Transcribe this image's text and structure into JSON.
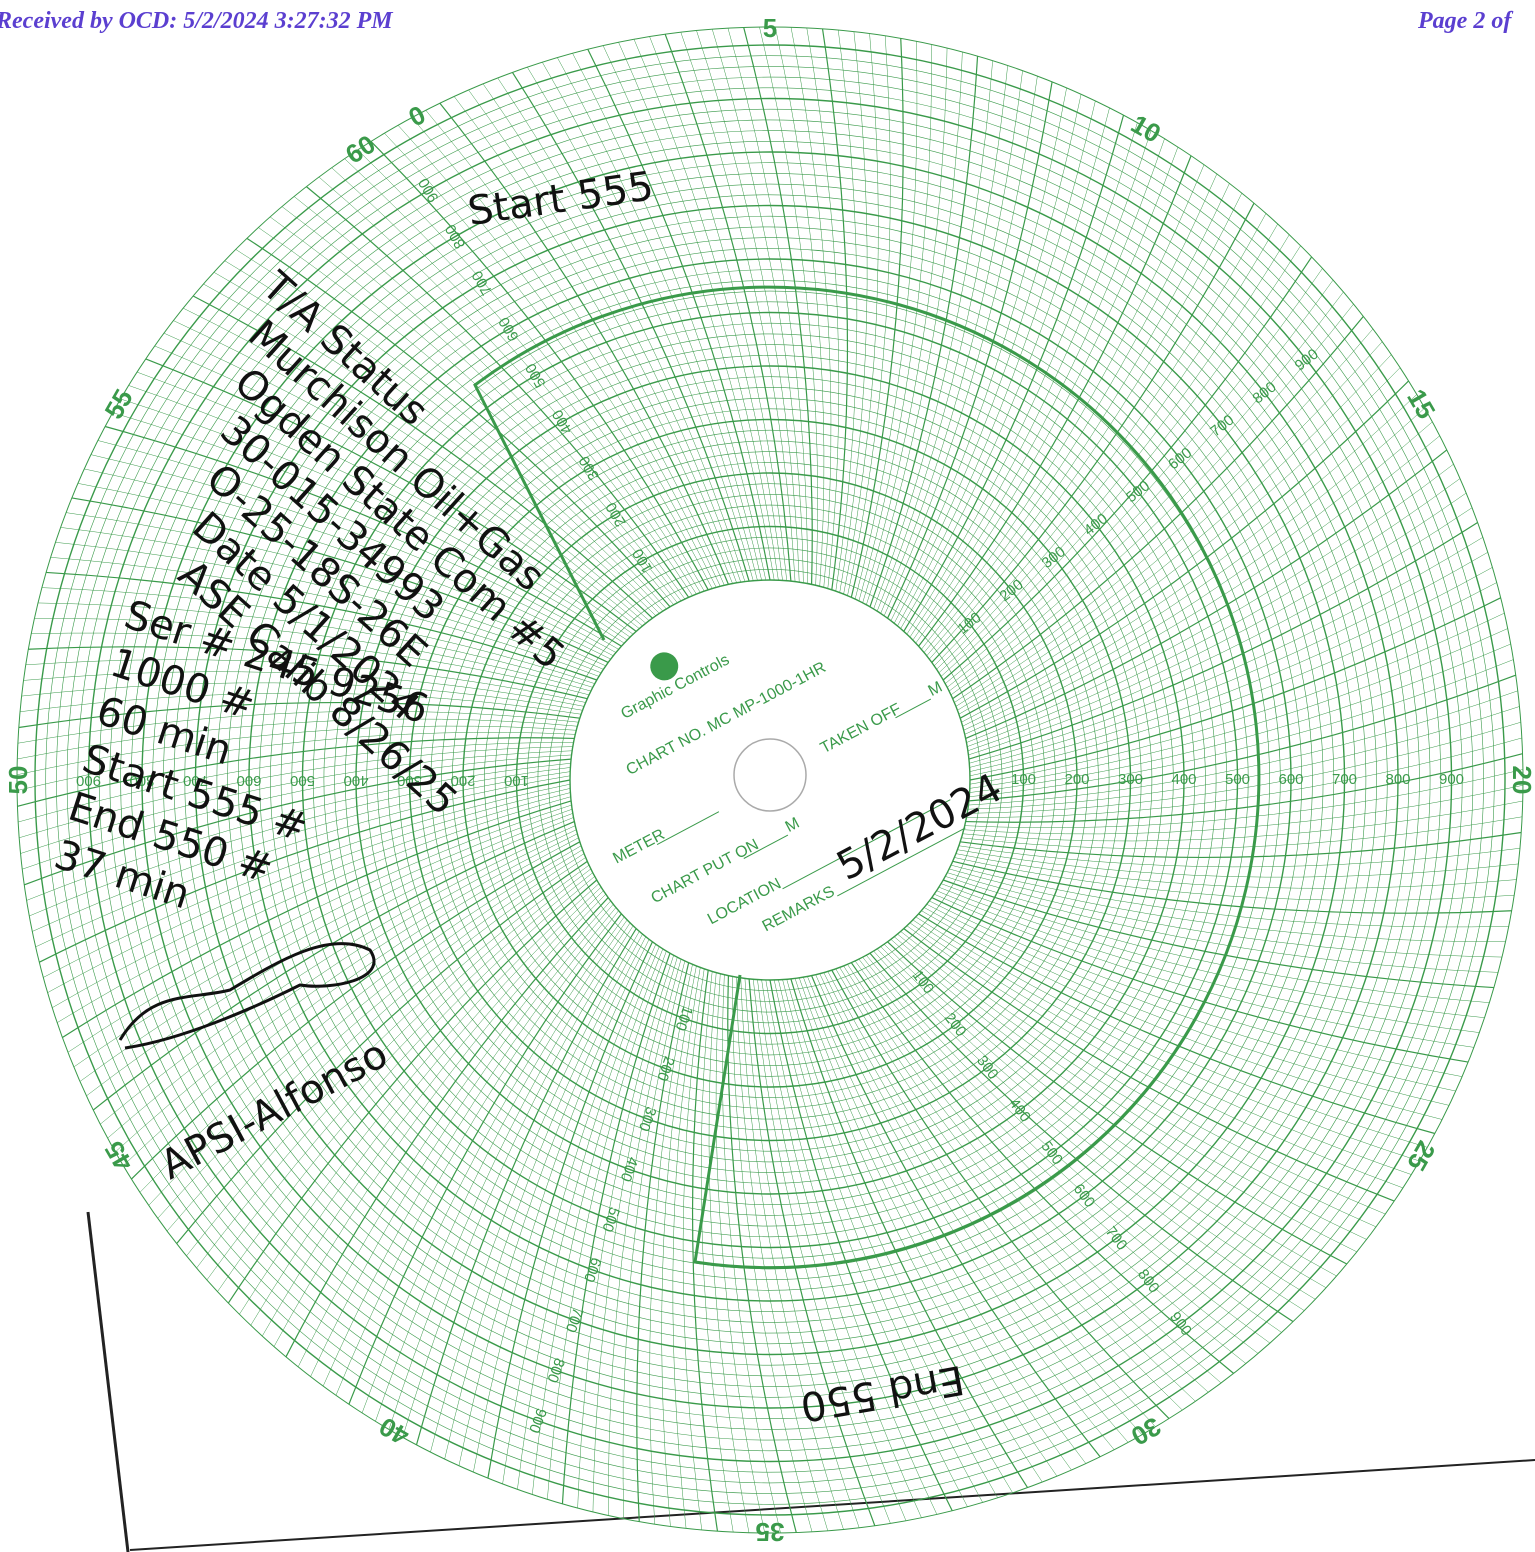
{
  "header": {
    "received": "Received by OCD: 5/2/2024 3:27:32 PM",
    "page": "Page 2 of"
  },
  "chart_face": {
    "minute_labels": [
      0,
      5,
      10,
      15,
      20,
      25,
      30,
      35,
      40,
      45,
      50,
      55,
      60
    ],
    "pressure_labels": [
      100,
      200,
      300,
      400,
      500,
      600,
      700,
      800,
      900
    ],
    "brand": "Graphic Controls",
    "chart_no": "CHART NO. MC MP-1000-1HR",
    "meter": "METER",
    "chart_put_on": "CHART PUT ON",
    "put_on_m": "M",
    "taken_off": "TAKEN OFF",
    "taken_off_m": "M",
    "location": "LOCATION",
    "remarks": "REMARKS"
  },
  "handwriting": {
    "start": "Start 555",
    "notes": [
      "T/A Status",
      "Murchison Oil+Gas",
      "Ogden State Com #5",
      "30-015-34993",
      "O-25-18S-26E",
      "Date 5/1/2024",
      "ASE Calib 8/26/25",
      "Ser # 245 9256",
      "1000 #",
      "60 min",
      "Start 555 #",
      "End 550 #",
      "37 min"
    ],
    "remarks_value": "5/2/2024",
    "tester": "APSI-Alfonso",
    "end": "End 550"
  }
}
